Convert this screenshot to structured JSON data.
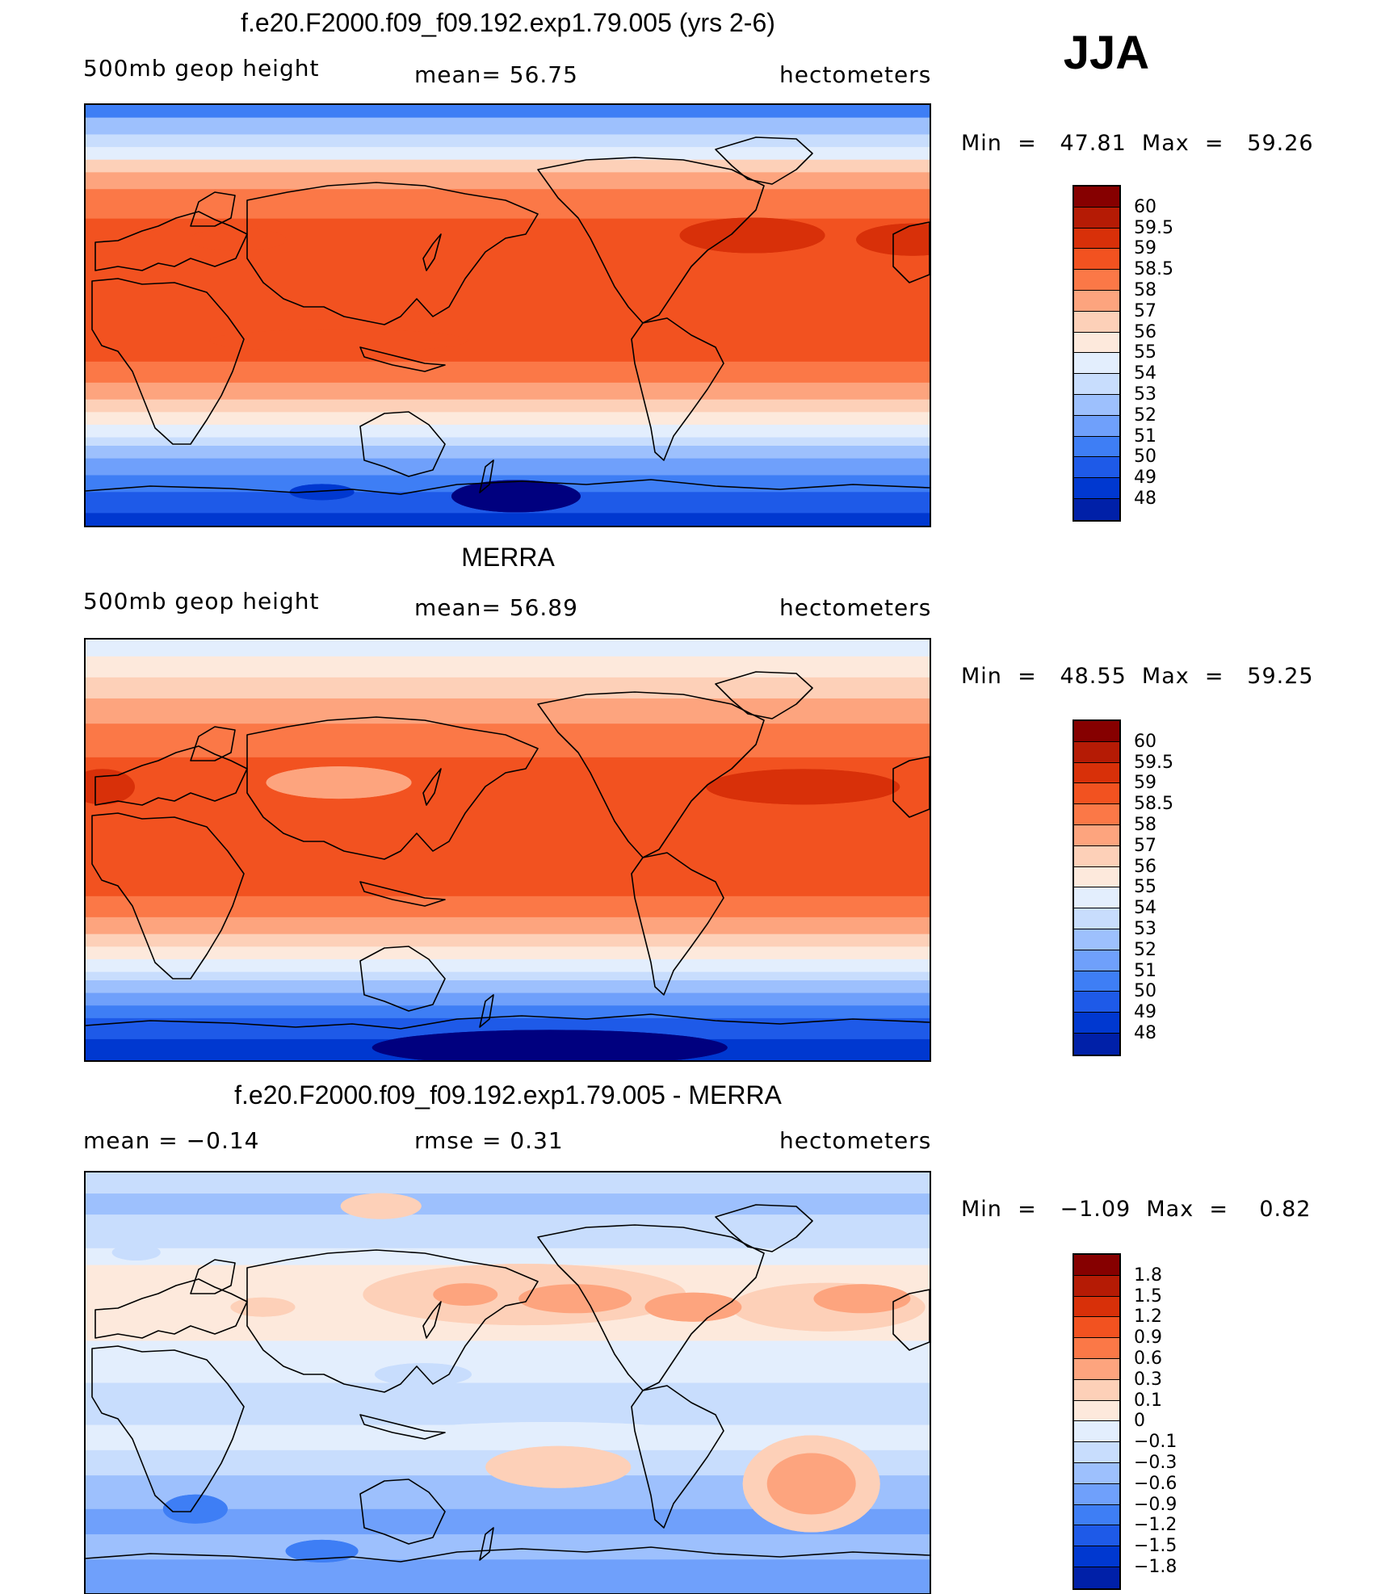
{
  "season": "JJA",
  "colors": {
    "abs": [
      "#00007f",
      "#0020a8",
      "#0038d0",
      "#1e5ae8",
      "#3e7ef5",
      "#6fa0fb",
      "#9dc0fd",
      "#c8ddfd",
      "#e3eefd",
      "#fde9dc",
      "#fdd0b8",
      "#fda47e",
      "#fb7847",
      "#f25220",
      "#d83009",
      "#b51b05",
      "#860000"
    ],
    "diff": [
      "#00007f",
      "#0020a8",
      "#0038d0",
      "#1e5ae8",
      "#3e7ef5",
      "#6fa0fb",
      "#9dc0fd",
      "#c8ddfd",
      "#e3eefd",
      "#fde9dc",
      "#fdd0b8",
      "#fda47e",
      "#fb7847",
      "#f25220",
      "#d83009",
      "#b51b05",
      "#860000"
    ],
    "coast": "#000000"
  },
  "panels": [
    {
      "title": "f.e20.F2000.f09_f09.192.exp1.79.005 (yrs 2-6)",
      "left": "500mb  geop  height",
      "center": "mean=   56.75",
      "right": "hectometers",
      "min": "47.81",
      "max": "59.26",
      "palette": "abs",
      "levels": [
        "60",
        "59.5",
        "59",
        "58.5",
        "58",
        "57",
        "56",
        "55",
        "54",
        "53",
        "52",
        "51",
        "50",
        "49",
        "48"
      ],
      "bands": [
        [
          0,
          4
        ],
        [
          0.03,
          6
        ],
        [
          0.07,
          7
        ],
        [
          0.1,
          8
        ],
        [
          0.13,
          10
        ],
        [
          0.16,
          11
        ],
        [
          0.2,
          12
        ],
        [
          0.27,
          13
        ],
        [
          0.61,
          12
        ],
        [
          0.66,
          11
        ],
        [
          0.7,
          10
        ],
        [
          0.73,
          9
        ],
        [
          0.76,
          8
        ],
        [
          0.79,
          7
        ],
        [
          0.81,
          6
        ],
        [
          0.84,
          5
        ],
        [
          0.88,
          4
        ],
        [
          0.92,
          3
        ],
        [
          0.97,
          2
        ]
      ]
    },
    {
      "title": "MERRA",
      "left": "500mb  geop  height",
      "center": "mean=   56.89",
      "right": "hectometers",
      "min": "48.55",
      "max": "59.25",
      "palette": "abs",
      "levels": [
        "60",
        "59.5",
        "59",
        "58.5",
        "58",
        "57",
        "56",
        "55",
        "54",
        "53",
        "52",
        "51",
        "50",
        "49",
        "48"
      ],
      "bands": [
        [
          0,
          8
        ],
        [
          0.04,
          9
        ],
        [
          0.09,
          10
        ],
        [
          0.14,
          11
        ],
        [
          0.2,
          12
        ],
        [
          0.28,
          13
        ],
        [
          0.61,
          12
        ],
        [
          0.66,
          11
        ],
        [
          0.7,
          10
        ],
        [
          0.73,
          9
        ],
        [
          0.76,
          8
        ],
        [
          0.79,
          7
        ],
        [
          0.81,
          6
        ],
        [
          0.84,
          5
        ],
        [
          0.87,
          4
        ],
        [
          0.9,
          3
        ],
        [
          0.95,
          2
        ]
      ]
    },
    {
      "title": "f.e20.F2000.f09_f09.192.exp1.79.005 - MERRA",
      "left": "mean =   −0.14",
      "center": "rmse =     0.31",
      "right": "hectometers",
      "min": "−1.09",
      "max": "0.82",
      "palette": "diff",
      "levels": [
        "1.8",
        "1.5",
        "1.2",
        "0.9",
        "0.6",
        "0.3",
        "0.1",
        "0",
        "−0.1",
        "−0.3",
        "−0.6",
        "−0.9",
        "−1.2",
        "−1.5",
        "−1.8"
      ],
      "bands": [
        [
          0,
          7
        ],
        [
          0.05,
          6
        ],
        [
          0.1,
          7
        ],
        [
          0.18,
          8
        ],
        [
          0.22,
          9
        ],
        [
          0.4,
          8
        ],
        [
          0.5,
          7
        ],
        [
          0.6,
          8
        ],
        [
          0.66,
          7
        ],
        [
          0.72,
          6
        ],
        [
          0.8,
          5
        ],
        [
          0.86,
          6
        ],
        [
          0.92,
          5
        ]
      ]
    }
  ]
}
